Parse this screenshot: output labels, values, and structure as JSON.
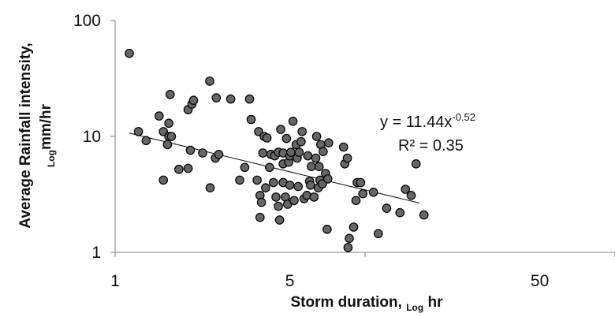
{
  "chart_data": {
    "type": "scatter",
    "xlabel": {
      "main": "Storm duration, ",
      "sub": "Log",
      "unit": " hr"
    },
    "ylabel": {
      "main": "Average Rainfall intensity,",
      "sub": "Log",
      "unit": "mm/hr"
    },
    "x_scale": "log",
    "y_scale": "log",
    "xlim": [
      1,
      100
    ],
    "ylim": [
      1,
      100
    ],
    "x_ticks": [
      {
        "value": 1,
        "label": "1"
      },
      {
        "value": 5,
        "label": "5"
      },
      {
        "value": 50,
        "label": "50"
      }
    ],
    "y_ticks": [
      {
        "value": 1,
        "label": "1"
      },
      {
        "value": 10,
        "label": "10"
      },
      {
        "value": 100,
        "label": "100"
      }
    ],
    "grid": false,
    "marker_color": "#666666",
    "marker_edge_color": "#000000",
    "trendline": {
      "coefficient": 11.44,
      "exponent": -0.52,
      "x_range": [
        1.14,
        16.5
      ],
      "equation_text": "y = 11.44x",
      "equation_exponent": "-0.52",
      "r2_text": "R² = 0.35"
    },
    "points": [
      [
        1.14,
        52
      ],
      [
        1.24,
        11
      ],
      [
        1.33,
        9.2
      ],
      [
        1.5,
        15
      ],
      [
        1.56,
        4.2
      ],
      [
        1.56,
        11
      ],
      [
        1.62,
        8.5
      ],
      [
        1.64,
        10
      ],
      [
        1.64,
        13
      ],
      [
        1.66,
        23
      ],
      [
        1.68,
        10
      ],
      [
        1.8,
        5.2
      ],
      [
        1.96,
        5.3
      ],
      [
        1.96,
        17
      ],
      [
        2.03,
        19
      ],
      [
        2.06,
        20.5
      ],
      [
        2.0,
        7.6
      ],
      [
        2.24,
        7.2
      ],
      [
        2.39,
        30
      ],
      [
        2.4,
        3.6
      ],
      [
        2.52,
        6.5
      ],
      [
        2.54,
        21.5
      ],
      [
        2.6,
        7
      ],
      [
        2.9,
        21
      ],
      [
        3.15,
        4.2
      ],
      [
        3.3,
        5.4
      ],
      [
        3.45,
        21
      ],
      [
        3.5,
        14
      ],
      [
        3.75,
        11
      ],
      [
        3.7,
        4.2
      ],
      [
        3.8,
        3.1
      ],
      [
        3.9,
        7.2
      ],
      [
        3.85,
        2.7
      ],
      [
        3.8,
        2.0
      ],
      [
        3.95,
        10
      ],
      [
        4.05,
        9.7
      ],
      [
        4.0,
        3.6
      ],
      [
        4.15,
        5.4
      ],
      [
        4.2,
        7.0
      ],
      [
        4.3,
        4.0
      ],
      [
        4.35,
        6.8
      ],
      [
        4.4,
        3.0
      ],
      [
        4.5,
        7.3
      ],
      [
        4.5,
        2.5
      ],
      [
        4.55,
        1.9
      ],
      [
        4.6,
        11.5
      ],
      [
        4.7,
        4.0
      ],
      [
        4.7,
        5.8
      ],
      [
        4.7,
        7.2
      ],
      [
        4.8,
        3.0
      ],
      [
        4.85,
        9.6
      ],
      [
        4.9,
        2.6
      ],
      [
        4.95,
        6.0
      ],
      [
        5.0,
        3.8
      ],
      [
        5.0,
        6.8
      ],
      [
        5.05,
        7.3
      ],
      [
        5.15,
        13.5
      ],
      [
        5.2,
        2.8
      ],
      [
        5.3,
        8.5
      ],
      [
        5.35,
        6.5
      ],
      [
        5.4,
        3.7
      ],
      [
        5.45,
        7.3
      ],
      [
        5.55,
        9.0
      ],
      [
        5.6,
        11
      ],
      [
        5.7,
        2.9
      ],
      [
        5.85,
        3.1
      ],
      [
        5.9,
        6.8
      ],
      [
        6.0,
        4.1
      ],
      [
        6.05,
        3.8
      ],
      [
        6.1,
        5.5
      ],
      [
        6.25,
        3.0
      ],
      [
        6.35,
        6.5
      ],
      [
        6.4,
        10
      ],
      [
        6.5,
        3.6
      ],
      [
        6.55,
        5.5
      ],
      [
        6.6,
        4.2
      ],
      [
        6.65,
        8.5
      ],
      [
        6.75,
        3.9
      ],
      [
        6.8,
        7.4
      ],
      [
        6.95,
        4.8
      ],
      [
        7.05,
        1.58
      ],
      [
        7.1,
        4.3
      ],
      [
        7.15,
        8.8
      ],
      [
        8.2,
        8.1
      ],
      [
        8.3,
        5.8
      ],
      [
        8.5,
        6.5
      ],
      [
        8.55,
        1.1
      ],
      [
        8.65,
        1.32
      ],
      [
        9.0,
        1.65
      ],
      [
        9.2,
        2.8
      ],
      [
        9.3,
        4.0
      ],
      [
        9.6,
        4.0
      ],
      [
        9.8,
        3.2
      ],
      [
        10.8,
        3.3
      ],
      [
        11.3,
        1.45
      ],
      [
        12.2,
        2.4
      ],
      [
        13.8,
        2.2
      ],
      [
        14.5,
        3.5
      ],
      [
        15.3,
        3.1
      ],
      [
        16.0,
        5.8
      ],
      [
        17.2,
        2.1
      ]
    ]
  }
}
